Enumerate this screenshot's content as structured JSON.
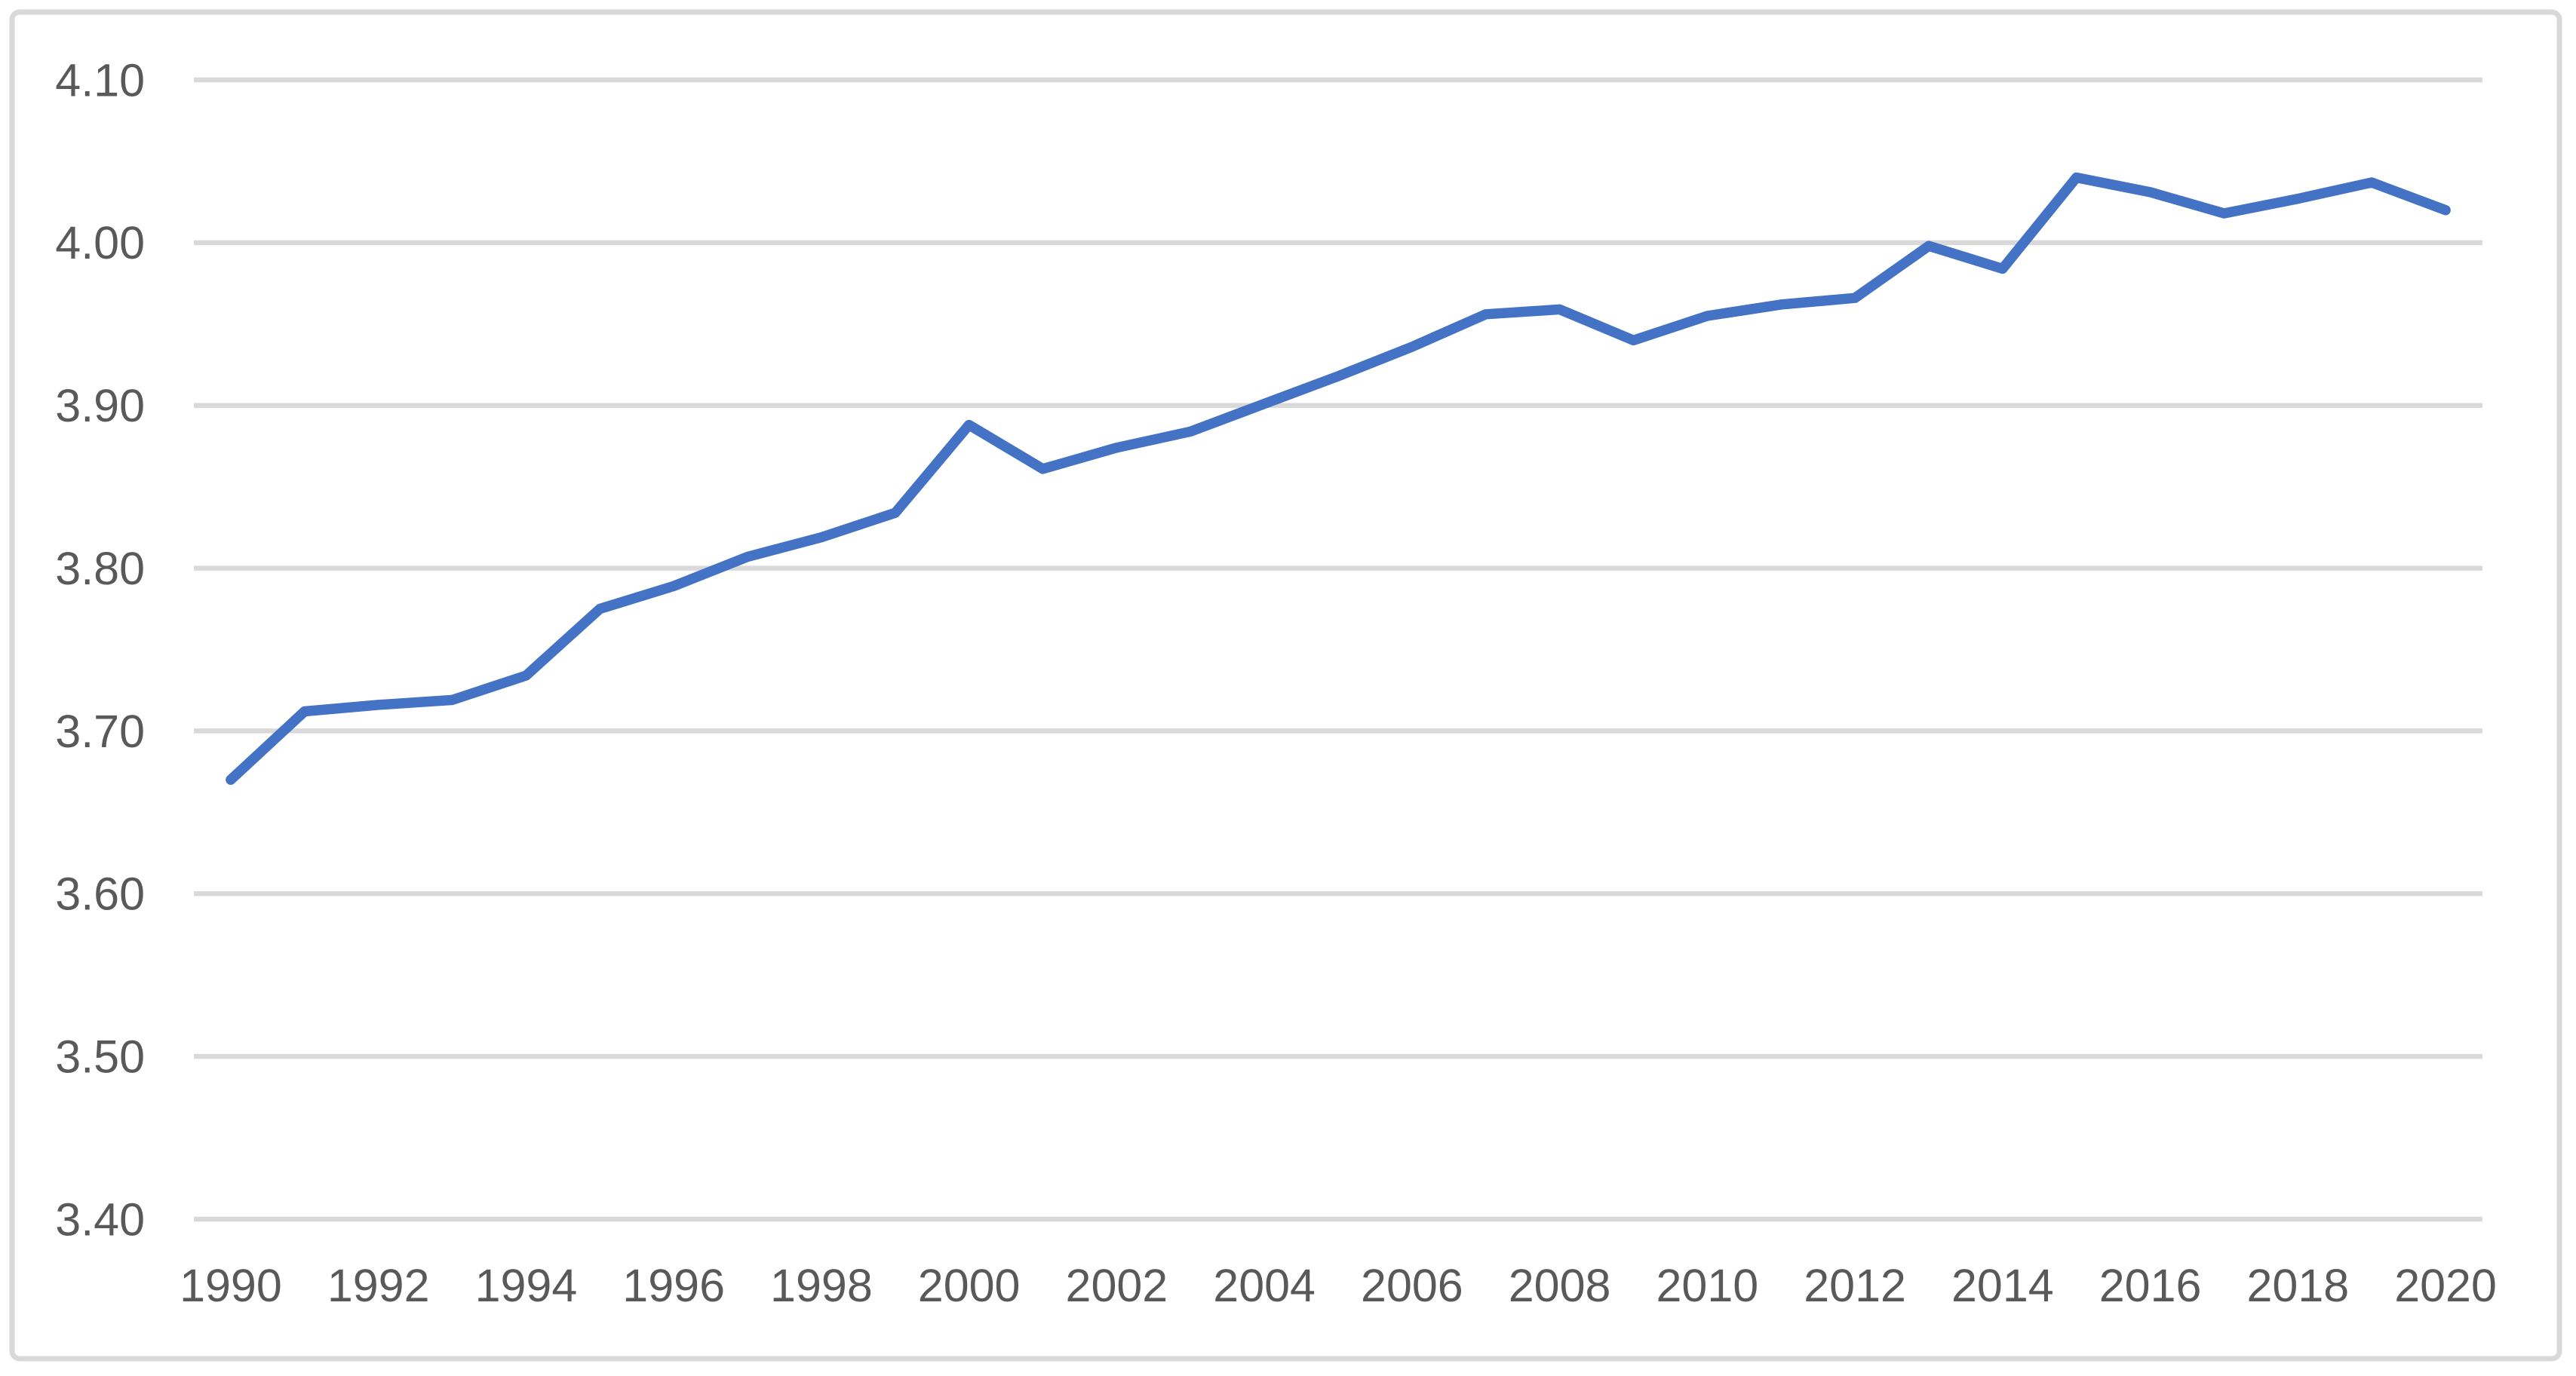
{
  "chart": {
    "background": "#ffffff",
    "border_color": "#d9d9d9",
    "gridline_color": "#d9d9d9",
    "line_color": "#4472c4",
    "tick_text_color": "#595959"
  },
  "chart_data": {
    "type": "line",
    "title": "",
    "xlabel": "",
    "ylabel": "",
    "x": [
      1990,
      1991,
      1992,
      1993,
      1994,
      1995,
      1996,
      1997,
      1998,
      1999,
      2000,
      2001,
      2002,
      2003,
      2004,
      2005,
      2006,
      2007,
      2008,
      2009,
      2010,
      2011,
      2012,
      2013,
      2014,
      2015,
      2016,
      2017,
      2018,
      2019,
      2020
    ],
    "values": [
      3.67,
      3.712,
      3.716,
      3.719,
      3.734,
      3.775,
      3.789,
      3.807,
      3.819,
      3.834,
      3.888,
      3.861,
      3.874,
      3.884,
      3.901,
      3.918,
      3.936,
      3.956,
      3.959,
      3.94,
      3.955,
      3.962,
      3.966,
      3.998,
      3.984,
      4.04,
      4.031,
      4.018,
      4.027,
      4.037,
      4.02
    ],
    "ylim": [
      3.4,
      4.1
    ],
    "y_tick_step": 0.1,
    "y_tick_labels": [
      "4.10",
      "4.00",
      "3.90",
      "3.80",
      "3.70",
      "3.60",
      "3.50",
      "3.40"
    ],
    "x_tick_labels": [
      "1990",
      "1992",
      "1994",
      "1996",
      "1998",
      "2000",
      "2002",
      "2004",
      "2006",
      "2008",
      "2010",
      "2012",
      "2014",
      "2016",
      "2018",
      "2020"
    ],
    "grid": "horizontal",
    "legend": "none"
  }
}
